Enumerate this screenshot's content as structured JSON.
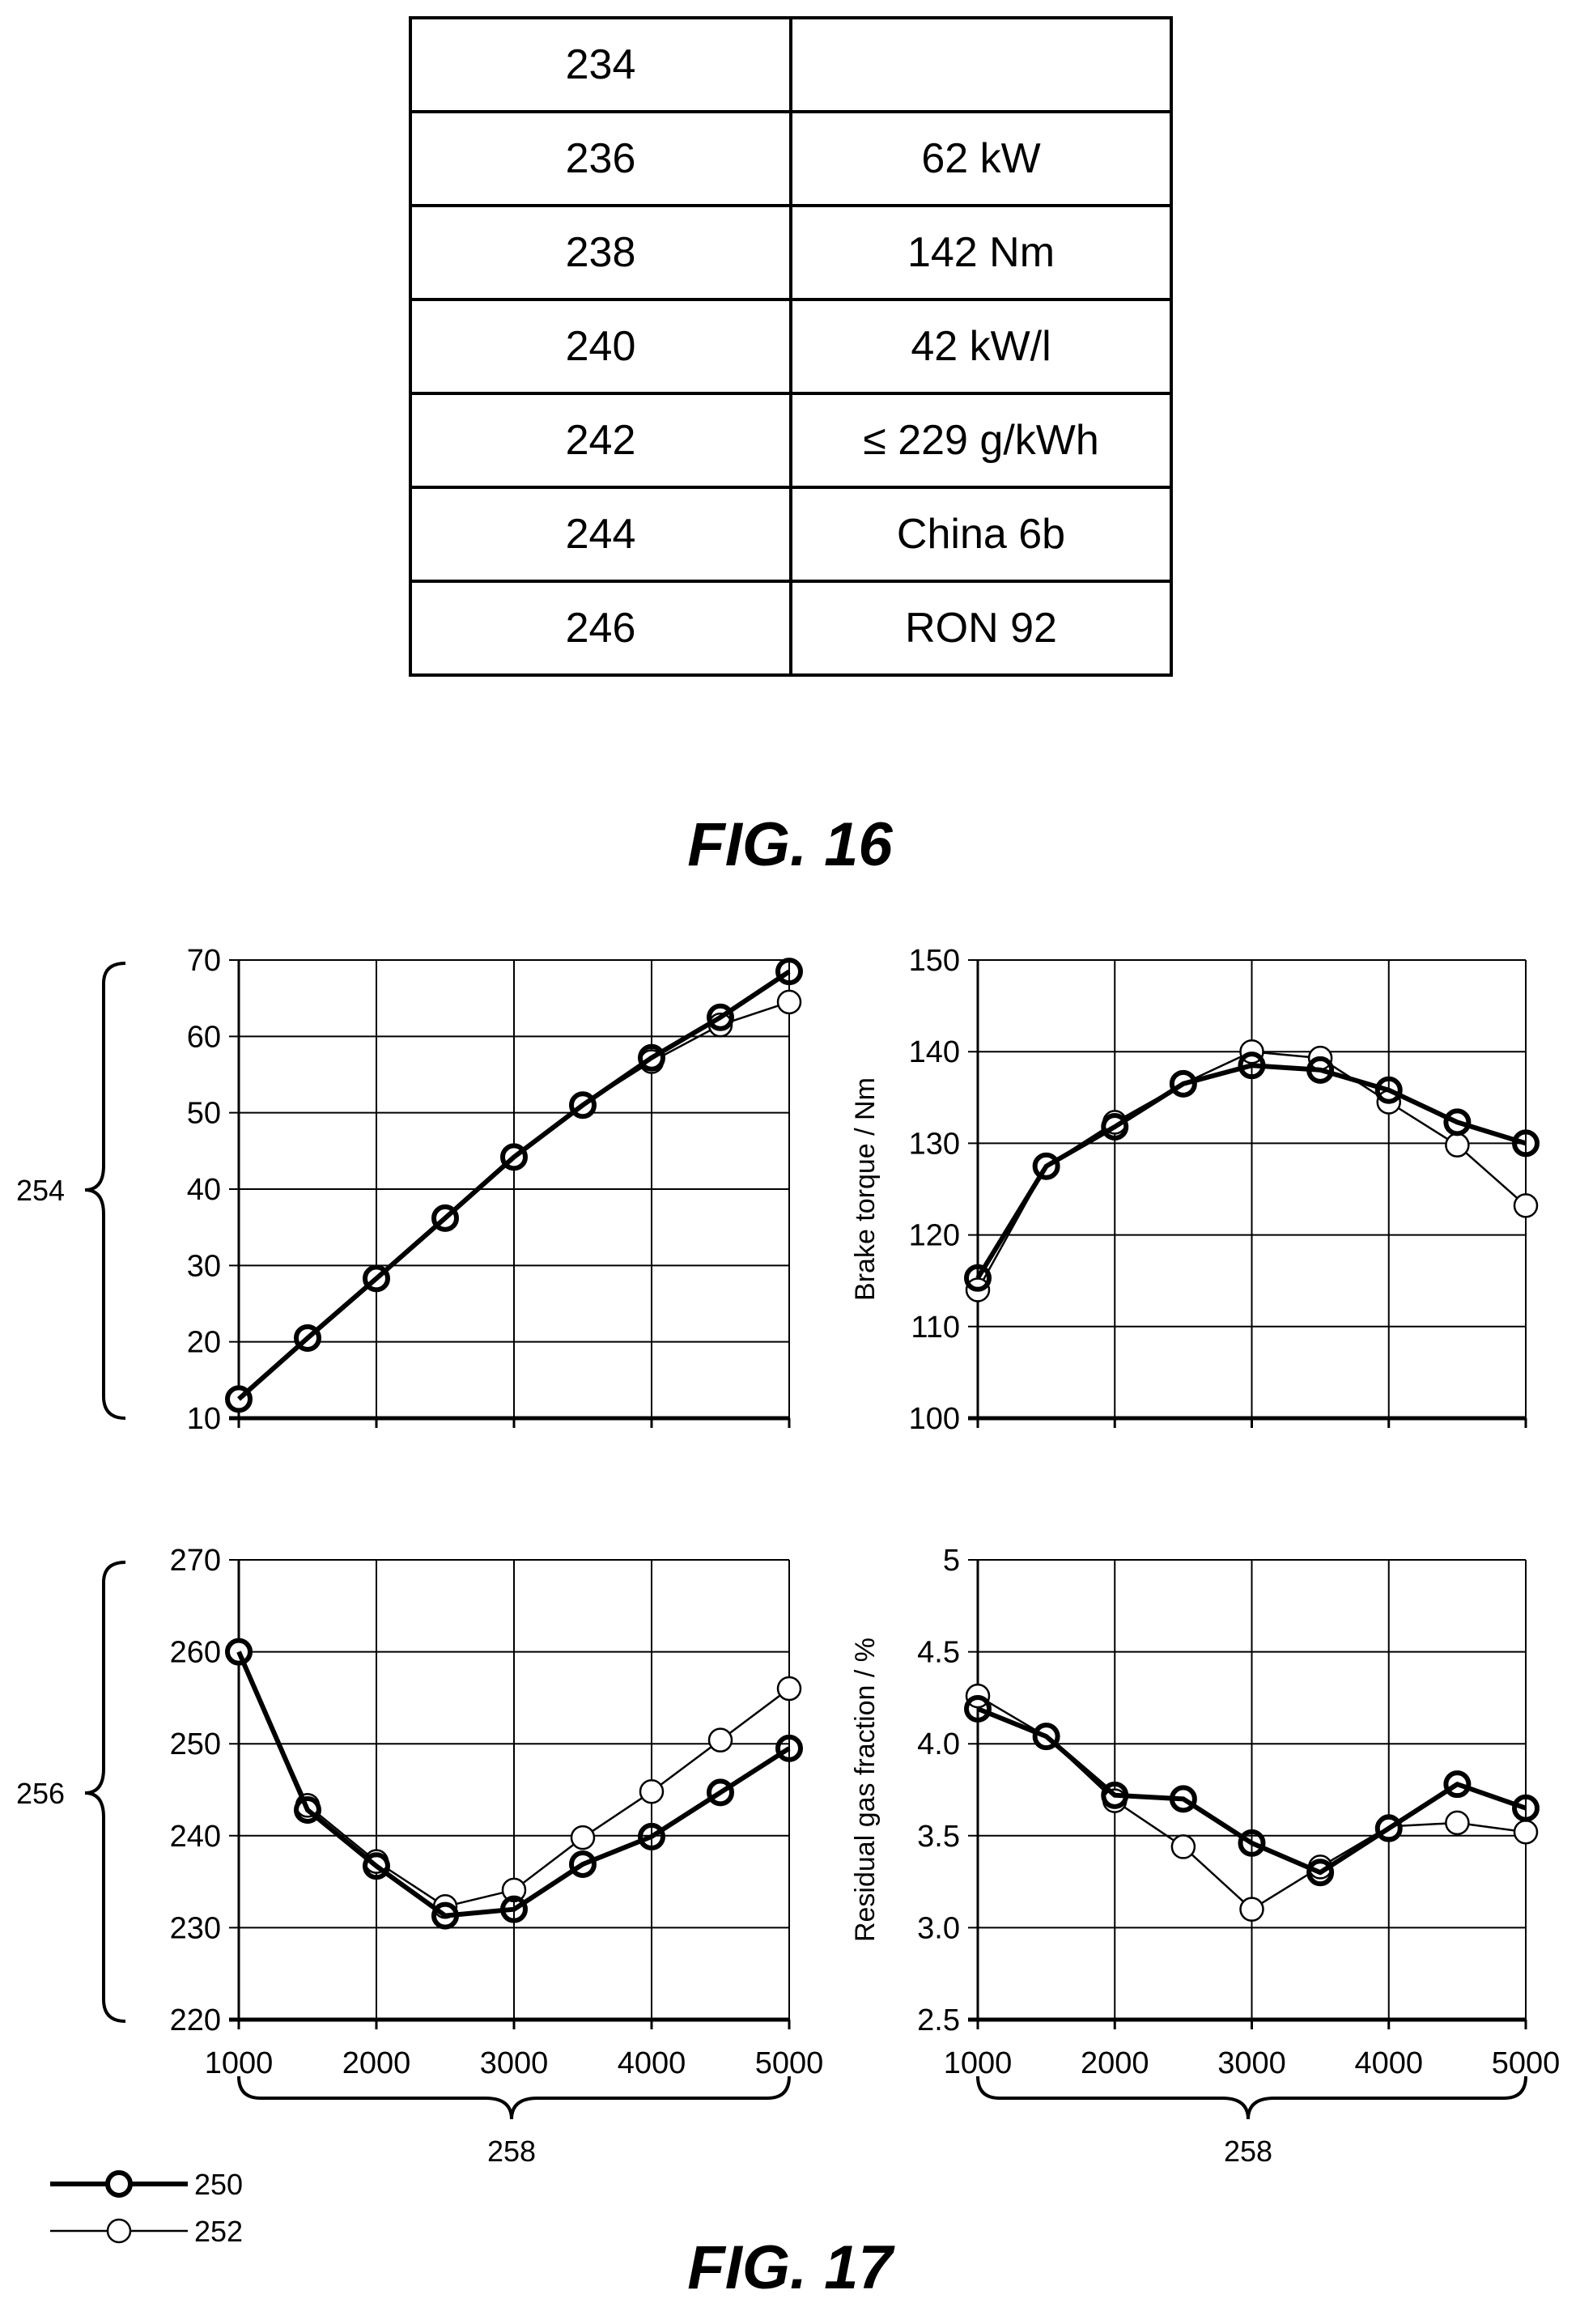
{
  "fig16": {
    "label": "FIG. 16",
    "rows": [
      {
        "ref": "234",
        "value": ""
      },
      {
        "ref": "236",
        "value": "62 kW"
      },
      {
        "ref": "238",
        "value": "142 Nm"
      },
      {
        "ref": "240",
        "value": "42 kW/l"
      },
      {
        "ref": "242",
        "value": "≤ 229 g/kWh"
      },
      {
        "ref": "244",
        "value": "China 6b"
      },
      {
        "ref": "246",
        "value": "RON 92"
      }
    ]
  },
  "fig17": {
    "label": "FIG. 17",
    "brace_refs": [
      "254",
      "256",
      "258",
      "258"
    ],
    "legend": [
      {
        "ref": "250",
        "style": "thick"
      },
      {
        "ref": "252",
        "style": "thin"
      }
    ]
  },
  "chart_data": [
    {
      "type": "line",
      "position": "top-left",
      "ylabel": "",
      "xlim": [
        1000,
        5000
      ],
      "ylim": [
        10,
        70
      ],
      "yticks": [
        "10",
        "20",
        "30",
        "40",
        "50",
        "60",
        "70"
      ],
      "xticks": [],
      "grid": true,
      "x": [
        1000,
        1500,
        2000,
        2500,
        3000,
        3500,
        4000,
        4500,
        5000
      ],
      "series": [
        {
          "name": "250",
          "values": [
            12.5,
            20.5,
            28.3,
            36.2,
            44.2,
            51.0,
            57.2,
            62.5,
            68.5
          ]
        },
        {
          "name": "252",
          "values": [
            12.5,
            20.5,
            28.3,
            36.2,
            44.2,
            51.0,
            56.7,
            61.5,
            64.5
          ]
        }
      ]
    },
    {
      "type": "line",
      "position": "top-right",
      "ylabel": "Brake torque / Nm",
      "xlim": [
        1000,
        5000
      ],
      "ylim": [
        100,
        150
      ],
      "yticks": [
        "100",
        "110",
        "120",
        "130",
        "140",
        "150"
      ],
      "xticks": [],
      "grid": true,
      "x": [
        1000,
        1500,
        2000,
        2500,
        3000,
        3500,
        4000,
        4500,
        5000
      ],
      "series": [
        {
          "name": "250",
          "values": [
            115.3,
            127.5,
            131.8,
            136.5,
            138.5,
            138.0,
            135.8,
            132.3,
            130.0
          ]
        },
        {
          "name": "252",
          "values": [
            114.0,
            127.5,
            132.3,
            136.5,
            140.0,
            139.3,
            134.5,
            129.8,
            123.2
          ]
        }
      ]
    },
    {
      "type": "line",
      "position": "bottom-left",
      "ylabel": "",
      "xlim": [
        1000,
        5000
      ],
      "ylim": [
        220,
        270
      ],
      "yticks": [
        "220",
        "230",
        "240",
        "250",
        "260",
        "270"
      ],
      "xticks": [
        "1000",
        "2000",
        "3000",
        "4000",
        "5000"
      ],
      "grid": true,
      "x": [
        1000,
        1500,
        2000,
        2500,
        3000,
        3500,
        4000,
        4500,
        5000
      ],
      "series": [
        {
          "name": "250",
          "values": [
            260.0,
            242.8,
            236.7,
            231.3,
            232.0,
            236.9,
            239.9,
            244.7,
            249.5
          ]
        },
        {
          "name": "252",
          "values": [
            260.0,
            243.3,
            237.2,
            232.3,
            234.1,
            239.8,
            244.8,
            250.4,
            256.0
          ]
        }
      ]
    },
    {
      "type": "line",
      "position": "bottom-right",
      "ylabel": "Residual gas fraction / %",
      "xlim": [
        1000,
        5000
      ],
      "ylim": [
        2.5,
        5.0
      ],
      "yticks": [
        "2.5",
        "3.0",
        "3.5",
        "4.0",
        "4.5",
        "5"
      ],
      "xticks": [
        "1000",
        "2000",
        "3000",
        "4000",
        "5000"
      ],
      "grid": true,
      "x": [
        1000,
        1500,
        2000,
        2500,
        3000,
        3500,
        4000,
        4500,
        5000
      ],
      "series": [
        {
          "name": "250",
          "values": [
            4.19,
            4.04,
            3.72,
            3.7,
            3.46,
            3.3,
            3.54,
            3.78,
            3.65
          ]
        },
        {
          "name": "252",
          "values": [
            4.26,
            4.04,
            3.69,
            3.44,
            3.1,
            3.33,
            3.55,
            3.57,
            3.52
          ]
        }
      ]
    }
  ]
}
